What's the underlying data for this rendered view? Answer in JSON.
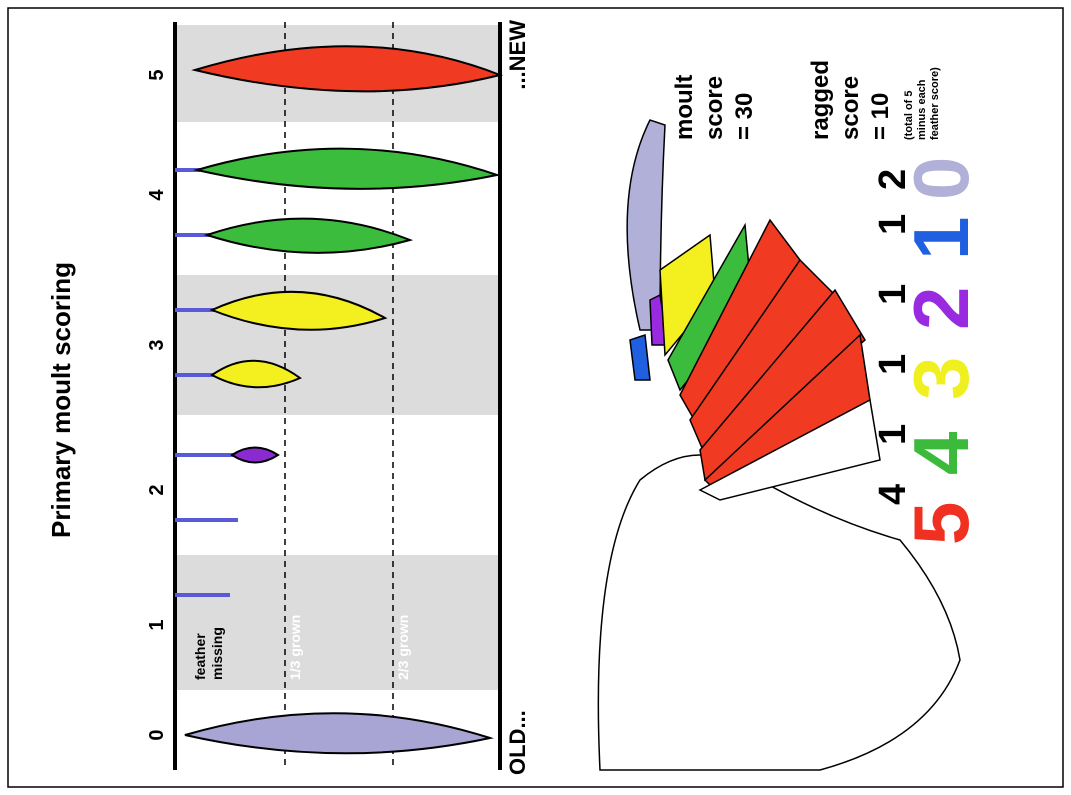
{
  "title": "Primary moult scoring",
  "scale": {
    "numbers": [
      "0",
      "1",
      "2",
      "3",
      "4",
      "5"
    ],
    "feather_missing": [
      "feather",
      "missing"
    ],
    "one_third": "1/3 grown",
    "two_thirds": "2/3 grown",
    "old": "OLD...",
    "new": "...NEW"
  },
  "scores": {
    "moult": [
      "moult",
      "score",
      "= 30"
    ],
    "ragged": [
      "ragged",
      "score",
      "= 10"
    ],
    "ragged_note": [
      "(total of 5",
      "minus each",
      "feather score)"
    ]
  },
  "wing_scores": {
    "digits": [
      "5",
      "4",
      "3",
      "2",
      "1",
      "0"
    ],
    "superscripts": [
      "4",
      "1",
      "1",
      "1",
      "1",
      "2"
    ]
  }
}
